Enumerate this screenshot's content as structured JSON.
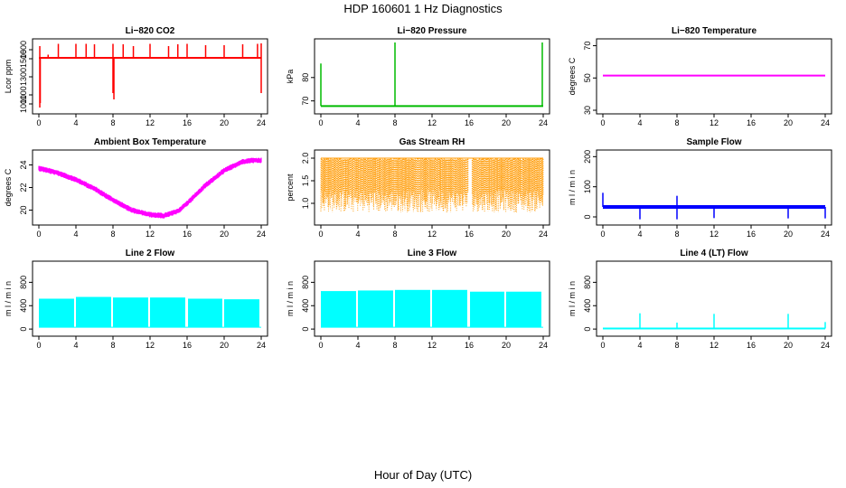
{
  "title": "HDP  160601 1 Hz Diagnostics",
  "x_axis_title": "Hour of Day (UTC)",
  "chart_data": [
    {
      "type": "line",
      "title": "Li−820 CO2",
      "ylabel": "Lcor ppm",
      "color": "#ff0000",
      "xlim": [
        0,
        24
      ],
      "xticks": [
        "0",
        "4",
        "8",
        "12",
        "16",
        "20",
        "24"
      ],
      "ylim": [
        930,
        1680
      ],
      "yticks": [
        "1000",
        "1100",
        "1300",
        "1500",
        "1600"
      ],
      "ytick_values": [
        1000,
        1100,
        1300,
        1500,
        1600
      ],
      "baseline": 1510,
      "spikes_up": [
        [
          0.1,
          1640
        ],
        [
          1.0,
          1545
        ],
        [
          2.1,
          1665
        ],
        [
          4.0,
          1665
        ],
        [
          5.1,
          1665
        ],
        [
          6.0,
          1660
        ],
        [
          8.0,
          1665
        ],
        [
          9.1,
          1660
        ],
        [
          10.2,
          1640
        ],
        [
          12.0,
          1665
        ],
        [
          14.0,
          1640
        ],
        [
          15.0,
          1660
        ],
        [
          16.0,
          1665
        ],
        [
          18.0,
          1650
        ],
        [
          20.0,
          1650
        ],
        [
          22.0,
          1660
        ],
        [
          23.6,
          1665
        ],
        [
          24.0,
          1670
        ]
      ],
      "spikes_down": [
        [
          0.1,
          960
        ],
        [
          0.15,
          1010
        ],
        [
          8.0,
          1120
        ],
        [
          8.1,
          1050
        ],
        [
          24.0,
          1120
        ]
      ]
    },
    {
      "type": "line",
      "title": "Li−820 Pressure",
      "ylabel": "kPa",
      "color": "#00bb00",
      "xlim": [
        0,
        24
      ],
      "xticks": [
        "0",
        "4",
        "8",
        "12",
        "16",
        "20",
        "24"
      ],
      "ylim": [
        66,
        95
      ],
      "yticks": [
        "70",
        "80"
      ],
      "ytick_values": [
        70,
        80
      ],
      "baseline": 67.8,
      "spikes_up": [
        [
          0.0,
          86
        ],
        [
          8.0,
          95
        ],
        [
          23.9,
          95
        ]
      ],
      "spikes_down": []
    },
    {
      "type": "line",
      "title": "Li−820 Temperature",
      "ylabel": "degrees C",
      "color": "#ff00ff",
      "xlim": [
        0,
        24
      ],
      "xticks": [
        "0",
        "4",
        "8",
        "12",
        "16",
        "20",
        "24"
      ],
      "ylim": [
        30,
        72
      ],
      "yticks": [
        "30",
        "50",
        "70"
      ],
      "ytick_values": [
        30,
        50,
        70
      ],
      "baseline": 51.5,
      "spikes_up": [],
      "spikes_down": []
    },
    {
      "type": "line",
      "title": "Ambient Box Temperature",
      "ylabel": "degrees C",
      "color": "#ff00ff",
      "xlim": [
        0,
        24
      ],
      "xticks": [
        "0",
        "4",
        "8",
        "12",
        "16",
        "20",
        "24"
      ],
      "ylim": [
        19,
        25
      ],
      "yticks": [
        "20",
        "22",
        "24"
      ],
      "ytick_values": [
        20,
        22,
        24
      ],
      "x": [
        0,
        2,
        4,
        6,
        8,
        10,
        12,
        13.5,
        15,
        16,
        18,
        20,
        22,
        23,
        24
      ],
      "y": [
        23.7,
        23.3,
        22.7,
        21.9,
        20.9,
        20.0,
        19.6,
        19.5,
        19.9,
        20.6,
        22.2,
        23.5,
        24.3,
        24.4,
        24.4
      ],
      "band": 0.5
    },
    {
      "type": "line",
      "title": "Gas Stream RH",
      "ylabel": "percent",
      "color": "#ff9900",
      "xlim": [
        0,
        24
      ],
      "xticks": [
        "0",
        "4",
        "8",
        "12",
        "16",
        "20",
        "24"
      ],
      "ylim": [
        0.6,
        2.1
      ],
      "yticks": [
        "1.0",
        "1.5",
        "2.0"
      ],
      "ytick_values": [
        1.0,
        1.5,
        2.0
      ],
      "upper": 2.0,
      "lower_mean": 1.05,
      "gap": [
        15.9,
        16.3
      ]
    },
    {
      "type": "line",
      "title": "Sample Flow",
      "ylabel": "m l / m i n",
      "color": "#0000ff",
      "xlim": [
        0,
        24
      ],
      "xticks": [
        "0",
        "4",
        "8",
        "12",
        "16",
        "20",
        "24"
      ],
      "ylim": [
        -15,
        210
      ],
      "yticks": [
        "0",
        "100",
        "200"
      ],
      "ytick_values": [
        0,
        100,
        200
      ],
      "baseline": 33,
      "spikes_up": [
        [
          0.0,
          80
        ],
        [
          8.0,
          70
        ]
      ],
      "spikes_down": [
        [
          4.0,
          -8
        ],
        [
          8.0,
          -8
        ],
        [
          12.0,
          -4
        ],
        [
          20.0,
          -5
        ],
        [
          24.0,
          -5
        ]
      ]
    },
    {
      "type": "area",
      "title": "Line 2 Flow",
      "ylabel": "m l / m i n",
      "color": "#00ffff",
      "xlim": [
        0,
        24
      ],
      "xticks": [
        "0",
        "4",
        "8",
        "12",
        "16",
        "20",
        "24"
      ],
      "ylim": [
        -60,
        1100
      ],
      "yticks": [
        "0",
        "400",
        "800"
      ],
      "ytick_values": [
        0,
        400,
        800
      ],
      "segments": [
        [
          0,
          3.8,
          520
        ],
        [
          4.0,
          7.8,
          550
        ],
        [
          8.0,
          11.8,
          540
        ],
        [
          12.0,
          15.8,
          540
        ],
        [
          16.1,
          19.8,
          520
        ],
        [
          20.0,
          23.8,
          510
        ]
      ],
      "floor": 30
    },
    {
      "type": "area",
      "title": "Line 3 Flow",
      "ylabel": "m l / m i n",
      "color": "#00ffff",
      "xlim": [
        0,
        24
      ],
      "xticks": [
        "0",
        "4",
        "8",
        "12",
        "16",
        "20",
        "24"
      ],
      "ylim": [
        -60,
        1100
      ],
      "yticks": [
        "0",
        "400",
        "800"
      ],
      "ytick_values": [
        0,
        400,
        800
      ],
      "segments": [
        [
          0,
          3.8,
          650
        ],
        [
          4.0,
          7.8,
          660
        ],
        [
          8.0,
          11.8,
          670
        ],
        [
          12.0,
          15.8,
          670
        ],
        [
          16.1,
          19.8,
          640
        ],
        [
          20.0,
          23.8,
          640
        ]
      ],
      "floor": 30
    },
    {
      "type": "line",
      "title": "Line 4 (LT) Flow",
      "ylabel": "m l / m i n",
      "color": "#00ffff",
      "xlim": [
        0,
        24
      ],
      "xticks": [
        "0",
        "4",
        "8",
        "12",
        "16",
        "20",
        "24"
      ],
      "ylim": [
        -60,
        1100
      ],
      "yticks": [
        "0",
        "400",
        "800"
      ],
      "ytick_values": [
        0,
        400,
        800
      ],
      "baseline": 10,
      "spikes_up": [
        [
          4.0,
          270
        ],
        [
          8.0,
          110
        ],
        [
          12.0,
          260
        ],
        [
          20.0,
          260
        ],
        [
          24.0,
          120
        ]
      ],
      "spikes_down": []
    }
  ]
}
